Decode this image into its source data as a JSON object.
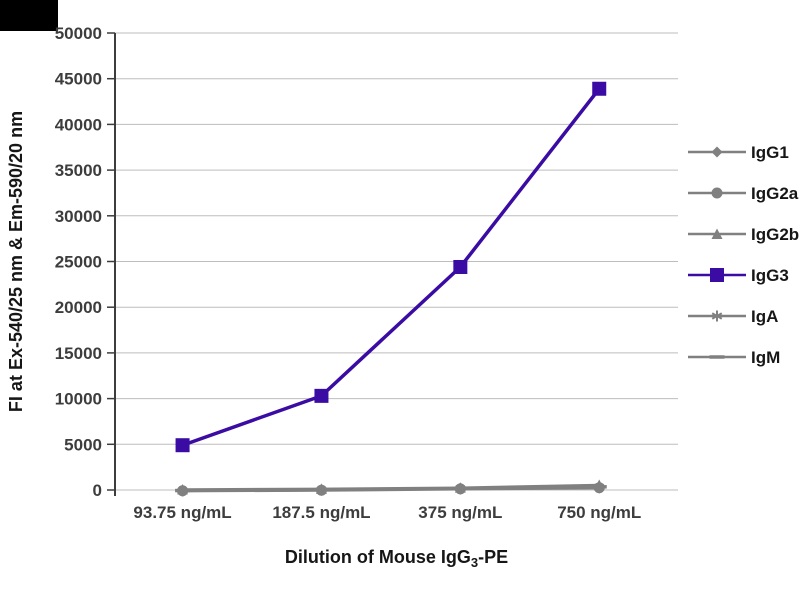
{
  "figure": {
    "background": "#ffffff",
    "corner_mark_color": "#000000"
  },
  "chart_data": {
    "type": "line",
    "title": "",
    "ylabel": "FI at Ex-540/25 nm & Em-590/20 nm",
    "xlabel": "Dilution of Mouse IgG3-PE",
    "xlabel_parts": {
      "pre": "Dilution of Mouse IgG",
      "sub": "3",
      "post": "-PE"
    },
    "categories": [
      "93.75 ng/mL",
      "187.5 ng/mL",
      "375 ng/mL",
      "750 ng/mL"
    ],
    "ylim": [
      0,
      50000
    ],
    "ytick_step": 5000,
    "grid": true,
    "legend_position": "right",
    "colors": {
      "accent": "#3a0ca3",
      "muted": "#808080",
      "grid": "#bdbdbd",
      "axis": "#3d3d3d",
      "tick_text": "#3d3d3d",
      "title_text": "#161616"
    },
    "series": [
      {
        "name": "IgG1",
        "marker": "diamond",
        "color": "#808080",
        "emphasis": false,
        "values": [
          -120,
          -60,
          80,
          200
        ]
      },
      {
        "name": "IgG2a",
        "marker": "circle",
        "color": "#808080",
        "emphasis": false,
        "values": [
          -80,
          -30,
          120,
          250
        ]
      },
      {
        "name": "IgG2b",
        "marker": "triangle",
        "color": "#808080",
        "emphasis": false,
        "values": [
          60,
          120,
          250,
          550
        ]
      },
      {
        "name": "IgG3",
        "marker": "square",
        "color": "#3a0ca3",
        "emphasis": true,
        "values": [
          4900,
          10300,
          24400,
          43900
        ]
      },
      {
        "name": "IgA",
        "marker": "asterisk",
        "color": "#808080",
        "emphasis": false,
        "values": [
          -100,
          0,
          150,
          300
        ]
      },
      {
        "name": "IgM",
        "marker": "dash",
        "color": "#808080",
        "emphasis": false,
        "values": [
          -60,
          30,
          180,
          350
        ]
      }
    ]
  }
}
